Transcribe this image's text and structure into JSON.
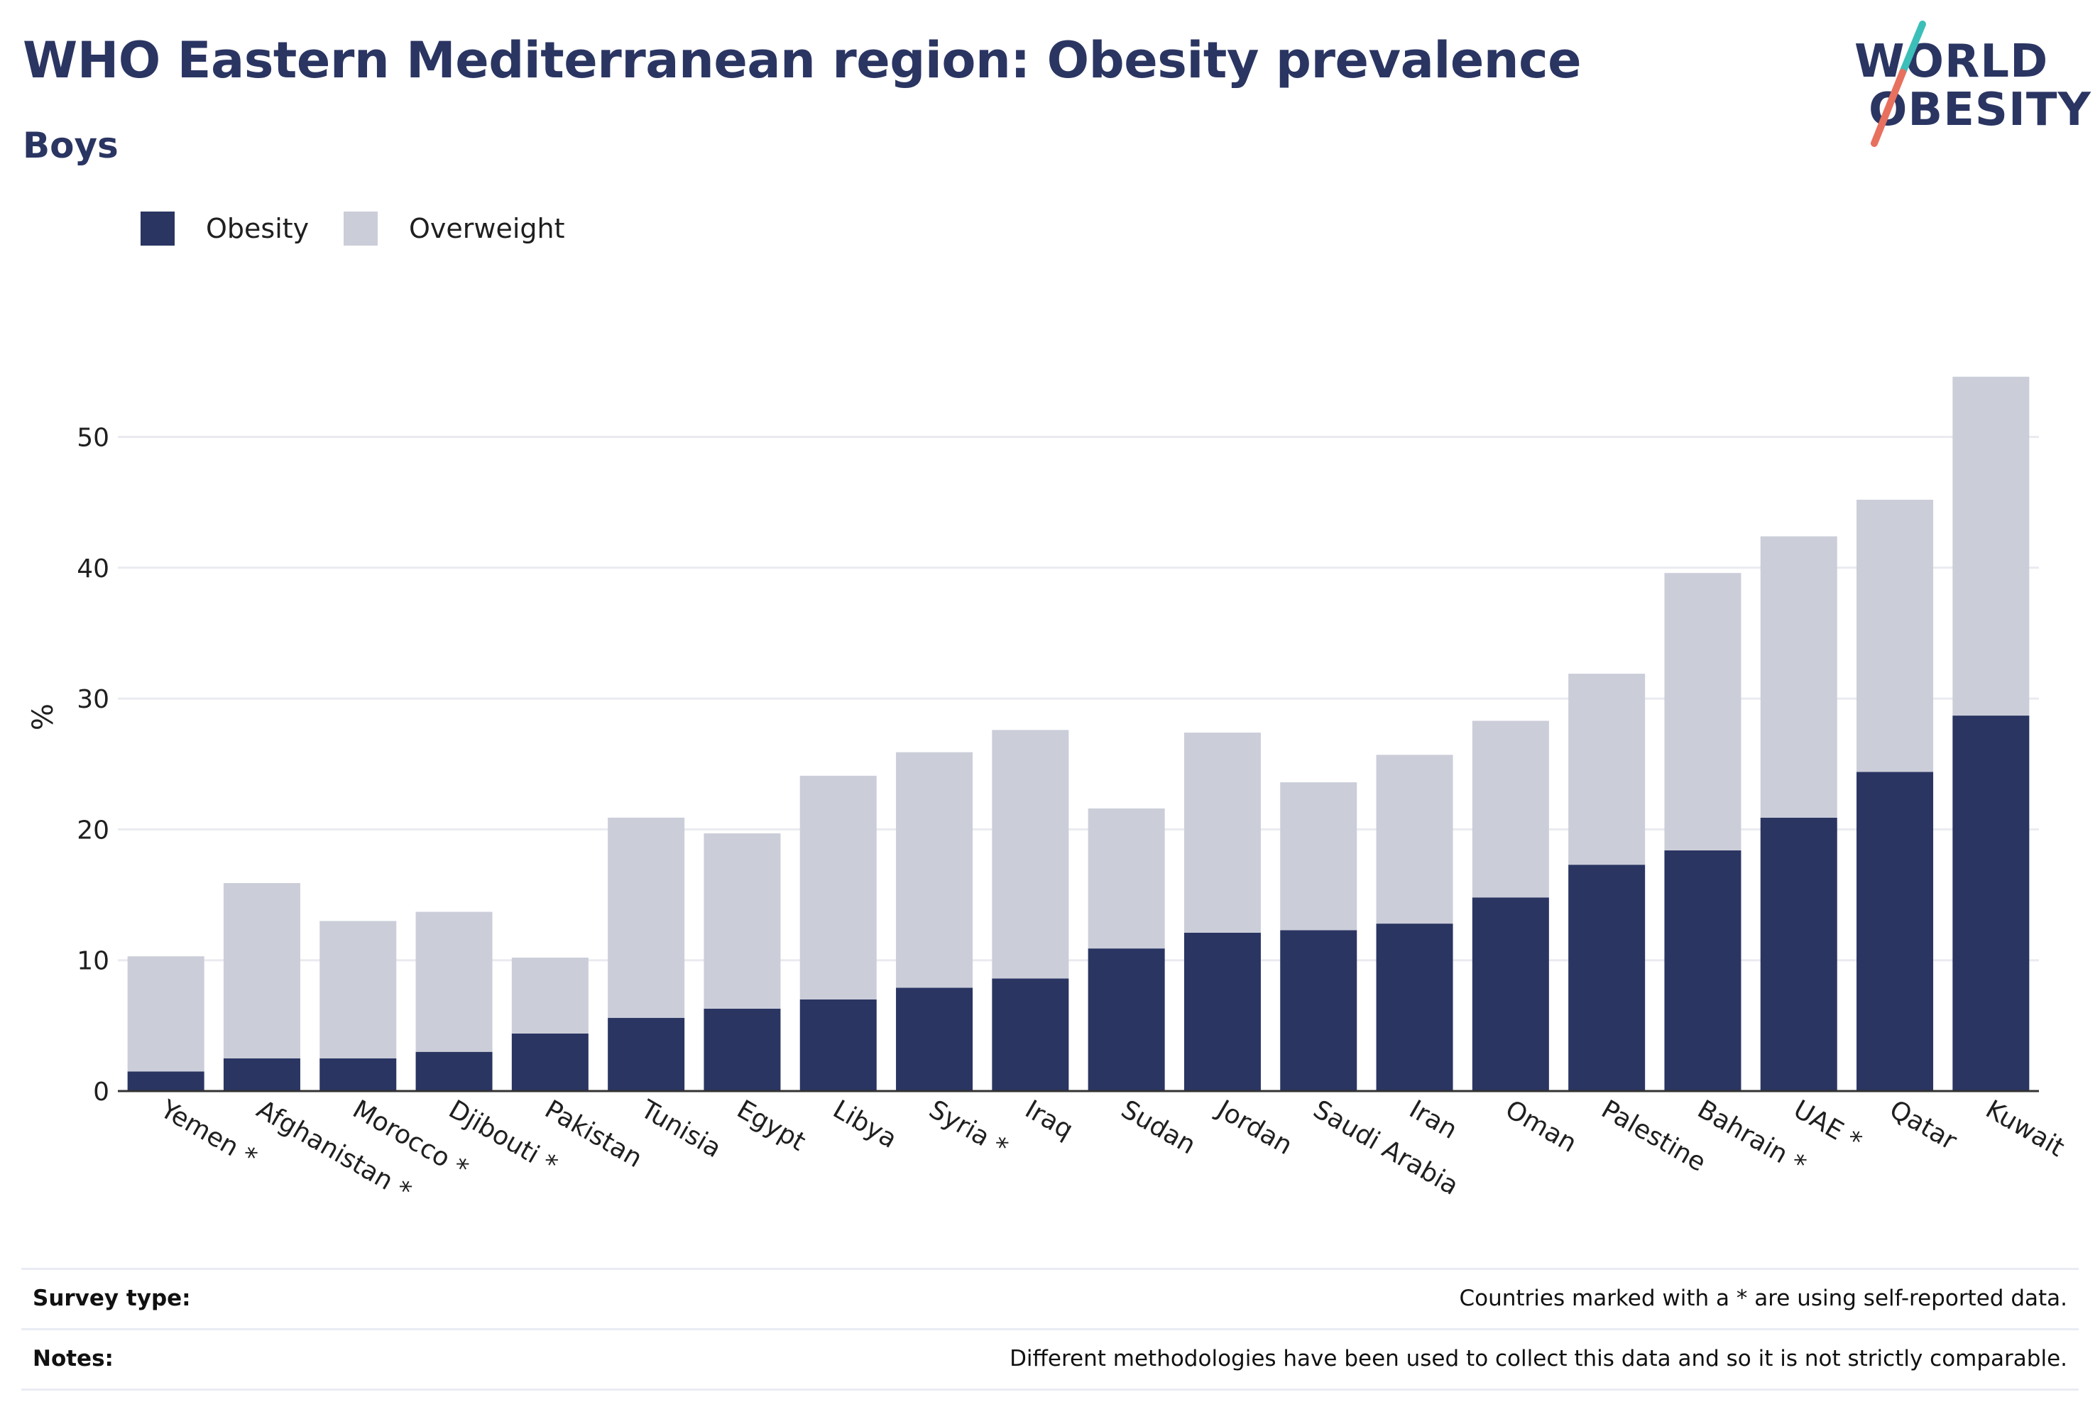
{
  "header": {
    "title": "WHO Eastern Mediterranean region: Obesity prevalence",
    "subtitle": "Boys"
  },
  "logo": {
    "line1": "WORLD",
    "line2": "OBESITY",
    "colors": {
      "text": "#2a3562",
      "slash_top": "#3bbfb8",
      "slash_bottom": "#e8705f"
    }
  },
  "legend": {
    "items": [
      {
        "label": "Obesity",
        "color": "#2a3562"
      },
      {
        "label": "Overweight",
        "color": "#cbcdd9"
      }
    ]
  },
  "chart_data": {
    "type": "bar",
    "stacked": true,
    "ylabel": "%",
    "xlabel": "",
    "ylim": [
      0,
      56
    ],
    "yticks": [
      0,
      10,
      20,
      30,
      40,
      50
    ],
    "grid": true,
    "legend_position": "top-left",
    "categories": [
      "Yemen *",
      "Afghanistan *",
      "Morocco *",
      "Djibouti *",
      "Pakistan",
      "Tunisia",
      "Egypt",
      "Libya",
      "Syria *",
      "Iraq",
      "Sudan",
      "Jordan",
      "Saudi Arabia",
      "Iran",
      "Oman",
      "Palestine",
      "Bahrain *",
      "UAE *",
      "Qatar",
      "Kuwait"
    ],
    "series": [
      {
        "name": "Obesity",
        "color": "#2a3562",
        "values": [
          1.5,
          2.5,
          2.5,
          3.0,
          4.4,
          5.6,
          6.3,
          7.0,
          7.9,
          8.6,
          10.9,
          12.1,
          12.3,
          12.8,
          14.8,
          17.3,
          18.4,
          20.9,
          24.4,
          28.7
        ]
      },
      {
        "name": "Overweight",
        "color": "#cbcdd9",
        "values": [
          8.8,
          13.4,
          10.5,
          10.7,
          5.8,
          15.3,
          13.4,
          17.1,
          18.0,
          19.0,
          10.7,
          15.3,
          11.3,
          12.9,
          13.5,
          14.6,
          21.2,
          21.5,
          20.8,
          25.9
        ]
      }
    ]
  },
  "footer": {
    "rows": [
      {
        "key": "Survey type:",
        "value": "Countries marked with a * are using self-reported data."
      },
      {
        "key": "Notes:",
        "value": "Different methodologies have been used to collect this data and so it is not strictly comparable."
      }
    ]
  }
}
